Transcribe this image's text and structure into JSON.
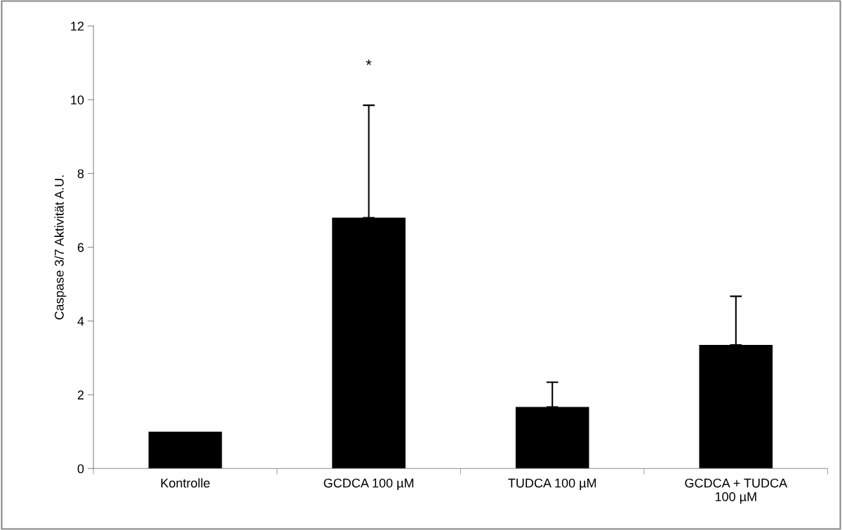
{
  "chart_data": {
    "type": "bar",
    "ylabel": "Caspase 3/7 Aktivität A.U.",
    "categories": [
      "Kontrolle",
      "GCDCA 100 µM",
      "TUDCA 100 µM",
      "GCDCA + TUDCA\n100 µM"
    ],
    "values": [
      1.0,
      6.8,
      1.67,
      3.35
    ],
    "color": "#000000",
    "errors": [
      null,
      [
        6.8,
        9.85
      ],
      [
        1.67,
        2.34
      ],
      [
        3.35,
        4.67
      ]
    ],
    "ylim": [
      0,
      12
    ],
    "yticks": [
      0,
      2,
      4,
      6,
      8,
      10,
      12
    ],
    "grid": false,
    "legend": false,
    "annotations": [
      "*"
    ]
  }
}
